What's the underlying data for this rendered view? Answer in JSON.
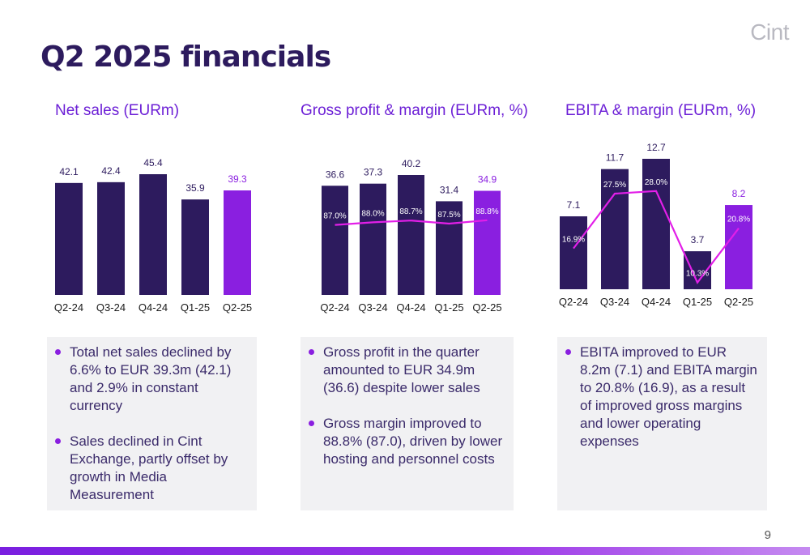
{
  "brand": {
    "logo": "Cint",
    "accent": "#8a1fe0",
    "dark": "#2d1b5e",
    "line": "#e21fe8"
  },
  "title": "Q2 2025 financials",
  "page_number": "9",
  "panels": [
    {
      "title": "Net sales (EURm)",
      "bullets": [
        "Total net sales declined by 6.6% to EUR 39.3m (42.1) and 2.9% in constant currency",
        "Sales declined in Cint Exchange, partly offset by growth in Media Measurement"
      ]
    },
    {
      "title": "Gross profit & margin (EURm, %)",
      "bullets": [
        "Gross profit in the quarter amounted to EUR 34.9m (36.6) despite lower sales",
        "Gross margin improved to 88.8% (87.0), driven by lower hosting and personnel costs"
      ]
    },
    {
      "title": "EBITA & margin (EURm, %)",
      "bullets": [
        "EBITA improved to EUR 8.2m (7.1) and EBITA margin to 20.8% (16.9), as a result of improved gross margins and lower operating expenses"
      ]
    }
  ],
  "chart_data": [
    {
      "type": "bar",
      "title": "Net sales (EURm)",
      "categories": [
        "Q2-24",
        "Q3-24",
        "Q4-24",
        "Q1-25",
        "Q2-25"
      ],
      "values": [
        42.1,
        42.4,
        45.4,
        35.9,
        39.3
      ],
      "value_labels": [
        "42.1",
        "42.4",
        "45.4",
        "35.9",
        "39.3"
      ],
      "ylim": [
        0,
        50
      ],
      "highlight_last": true
    },
    {
      "type": "bar",
      "title": "Gross profit & margin (EURm, %)",
      "categories": [
        "Q2-24",
        "Q3-24",
        "Q4-24",
        "Q1-25",
        "Q2-25"
      ],
      "values": [
        36.6,
        37.3,
        40.2,
        31.4,
        34.9
      ],
      "value_labels": [
        "36.6",
        "37.3",
        "40.2",
        "31.4",
        "34.9"
      ],
      "margin": [
        87.0,
        88.0,
        88.7,
        87.5,
        88.8
      ],
      "margin_labels": [
        "87.0%",
        "88.0%",
        "88.7%",
        "87.5%",
        "88.8%"
      ],
      "ylim": [
        0,
        50
      ],
      "margin_lim": [
        60,
        120
      ],
      "highlight_last": true
    },
    {
      "type": "bar",
      "title": "EBITA & margin (EURm, %)",
      "categories": [
        "Q2-24",
        "Q3-24",
        "Q4-24",
        "Q1-25",
        "Q2-25"
      ],
      "values": [
        7.1,
        11.7,
        12.7,
        3.7,
        8.2
      ],
      "value_labels": [
        "7.1",
        "11.7",
        "12.7",
        "3.7",
        "8.2"
      ],
      "margin": [
        16.9,
        27.5,
        28.0,
        10.3,
        20.8
      ],
      "margin_labels": [
        "16.9%",
        "27.5%",
        "28.0%",
        "10.3%",
        "20.8%"
      ],
      "ylim": [
        0,
        14
      ],
      "margin_lim": [
        9,
        38
      ],
      "highlight_last": true
    }
  ]
}
